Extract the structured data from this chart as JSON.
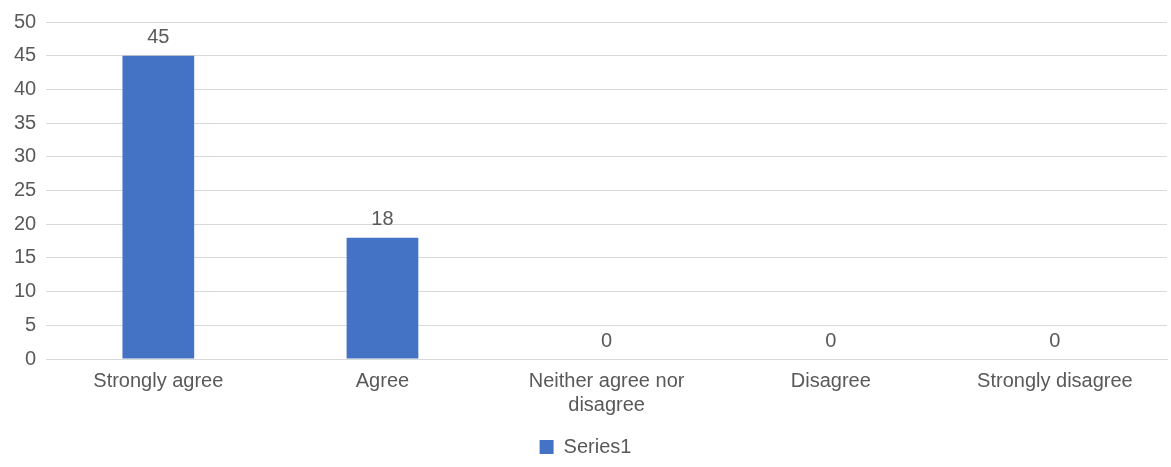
{
  "chart_data": {
    "type": "bar",
    "categories": [
      "Strongly agree",
      "Agree",
      "Neither agree nor disagree",
      "Disagree",
      "Strongly disagree"
    ],
    "series": [
      {
        "name": "Series1",
        "color": "#4472c4",
        "values": [
          45,
          18,
          0,
          0,
          0
        ]
      }
    ],
    "ylim": [
      0,
      50
    ],
    "yticks": [
      0,
      5,
      10,
      15,
      20,
      25,
      30,
      35,
      40,
      45,
      50
    ],
    "grid": "y",
    "legend": "bottom",
    "data_labels": true
  }
}
